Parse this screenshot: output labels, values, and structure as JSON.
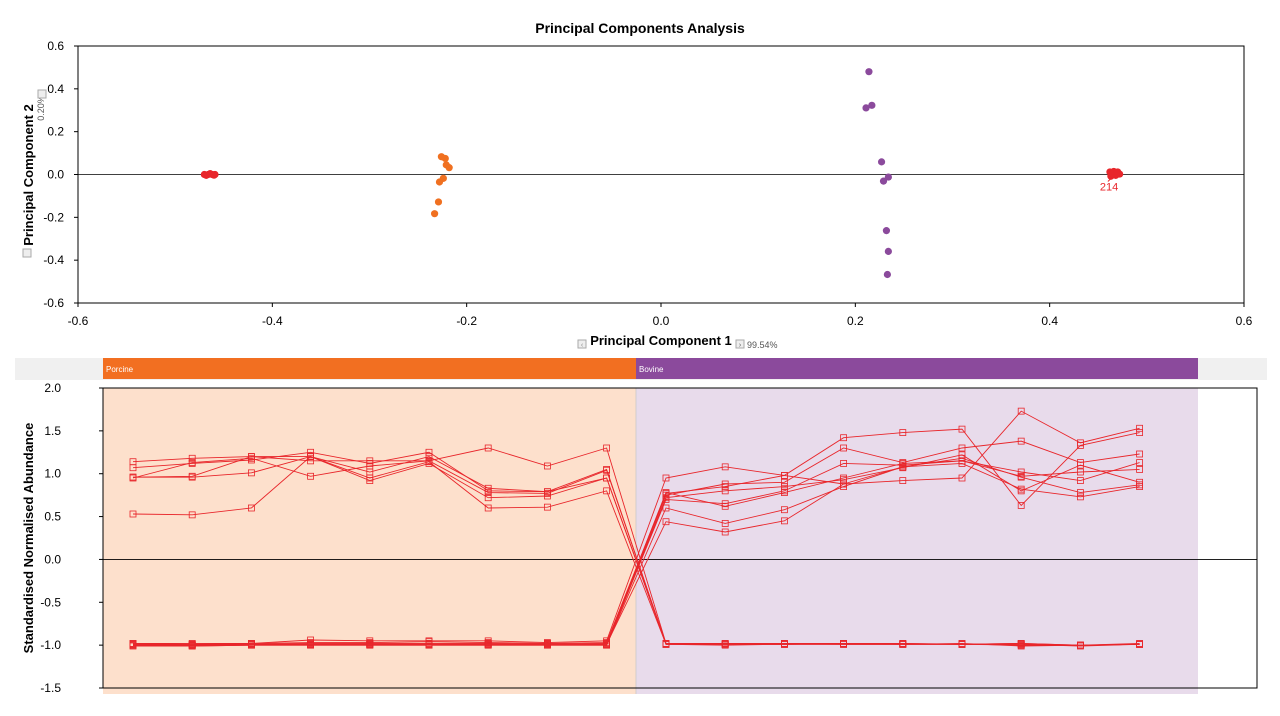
{
  "chart_data": [
    {
      "type": "scatter",
      "title": "Principal Components Analysis",
      "xlabel": "Principal Component 1",
      "ylabel": "Principal Component 2",
      "x_variance": "99.54%",
      "y_variance": "0.20%",
      "xlim": [
        -0.6,
        0.6
      ],
      "ylim": [
        -0.6,
        0.6
      ],
      "xticks": [
        "-0.6",
        "-0.4",
        "-0.2",
        "0.0",
        "0.2",
        "0.4",
        "0.6"
      ],
      "yticks": [
        "0.6",
        "0.4",
        "0.2",
        "0.0",
        "-0.2",
        "-0.4",
        "-0.6"
      ],
      "point_annotation": "214",
      "series": [
        {
          "color": "#e8262b",
          "points": [
            [
              -0.47,
              0.0
            ],
            [
              -0.466,
              0.0
            ],
            [
              -0.462,
              0.0
            ],
            [
              -0.459,
              0.0
            ],
            [
              -0.468,
              -0.004
            ],
            [
              -0.464,
              0.004
            ],
            [
              -0.46,
              -0.003
            ]
          ]
        },
        {
          "color": "#f07020",
          "points": [
            [
              -0.226,
              0.083
            ],
            [
              -0.222,
              0.075
            ],
            [
              -0.221,
              0.045
            ],
            [
              -0.218,
              0.032
            ],
            [
              -0.224,
              -0.018
            ],
            [
              -0.228,
              -0.035
            ],
            [
              -0.229,
              -0.128
            ],
            [
              -0.233,
              -0.183
            ]
          ]
        },
        {
          "color": "#8b4a9c",
          "points": [
            [
              0.214,
              0.48
            ],
            [
              0.211,
              0.311
            ],
            [
              0.217,
              0.323
            ],
            [
              0.227,
              0.059
            ],
            [
              0.234,
              -0.012
            ],
            [
              0.229,
              -0.031
            ],
            [
              0.232,
              -0.262
            ],
            [
              0.234,
              -0.359
            ],
            [
              0.233,
              -0.467
            ]
          ]
        },
        {
          "color": "#e8262b",
          "points": [
            [
              0.462,
              0.012
            ],
            [
              0.466,
              0.014
            ],
            [
              0.47,
              0.012
            ],
            [
              0.464,
              0.0
            ],
            [
              0.468,
              -0.004
            ],
            [
              0.472,
              0.002
            ],
            [
              0.463,
              -0.008
            ],
            [
              0.469,
              0.006
            ]
          ]
        }
      ]
    },
    {
      "type": "line",
      "ylabel": "Standardised Normalised Abundance",
      "ylim": [
        -1.5,
        2.0
      ],
      "yticks": [
        "2.0",
        "1.5",
        "1.0",
        "0.5",
        "0.0",
        "-0.5",
        "-1.0",
        "-1.5"
      ],
      "groups": [
        {
          "name": "Porcine",
          "color": "#f26f21",
          "fill": "#fde0cc",
          "samples": 9
        },
        {
          "name": "Bovine",
          "color": "#8b4a9c",
          "fill": "#e8dbeb",
          "samples": 9
        }
      ],
      "line_color": "#e8262b",
      "series": [
        {
          "values": [
            1.14,
            1.18,
            1.2,
            1.15,
            1.15,
            1.15,
            1.3,
            1.09,
            1.3,
            -0.98,
            -0.99,
            -0.98,
            -0.99,
            -0.99,
            -0.99,
            -0.98,
            -1.0,
            -0.99
          ]
        },
        {
          "values": [
            1.07,
            1.12,
            1.16,
            1.25,
            1.12,
            1.25,
            0.8,
            0.79,
            1.05,
            -0.99,
            -1.0,
            -0.99,
            -0.99,
            -0.99,
            -0.98,
            -1.01,
            -1.0,
            -0.99
          ]
        },
        {
          "values": [
            0.96,
            0.97,
            1.2,
            1.2,
            0.92,
            1.12,
            0.72,
            0.74,
            0.95,
            -0.98,
            -0.98,
            -0.98,
            -0.98,
            -0.98,
            -0.99,
            -0.99,
            -1.0,
            -0.99
          ]
        },
        {
          "values": [
            0.95,
            1.13,
            1.18,
            0.97,
            1.09,
            1.15,
            0.78,
            0.77,
            1.04,
            -0.99,
            -0.99,
            -0.99,
            -0.99,
            -0.99,
            -0.99,
            -0.99,
            -1.01,
            -0.99
          ]
        },
        {
          "values": [
            0.53,
            0.52,
            0.6,
            1.2,
            0.95,
            1.14,
            0.6,
            0.61,
            0.8,
            -0.99,
            -0.98,
            -0.99,
            -0.98,
            -0.98,
            -0.99,
            -1.0,
            -1.0,
            -0.99
          ]
        },
        {
          "values": [
            0.96,
            0.96,
            1.01,
            1.2,
            1.02,
            1.2,
            0.83,
            0.79,
            0.95,
            -0.99,
            -0.99,
            -0.99,
            -0.98,
            -0.99,
            -0.99,
            -0.98,
            -1.0,
            -0.98
          ]
        },
        {
          "values": [
            -0.98,
            -0.98,
            -0.98,
            -0.94,
            -0.95,
            -0.95,
            -0.95,
            -0.97,
            -0.95,
            0.95,
            1.08,
            0.98,
            0.88,
            0.92,
            0.95,
            1.73,
            1.36,
            1.53
          ]
        },
        {
          "values": [
            -0.99,
            -1.0,
            -0.98,
            -0.97,
            -0.97,
            -0.96,
            -0.97,
            -0.98,
            -0.97,
            0.77,
            0.85,
            0.98,
            1.42,
            1.48,
            1.52,
            0.63,
            1.33,
            1.48
          ]
        },
        {
          "values": [
            -1.0,
            -1.0,
            -0.99,
            -0.99,
            -0.99,
            -0.99,
            -0.99,
            -0.99,
            -0.99,
            0.75,
            0.88,
            0.9,
            1.3,
            1.13,
            1.3,
            1.38,
            1.13,
            1.23
          ]
        },
        {
          "values": [
            -1.01,
            -1.01,
            -1.0,
            -1.0,
            -1.0,
            -1.0,
            -1.0,
            -1.0,
            -1.0,
            0.7,
            0.65,
            0.8,
            1.12,
            1.1,
            1.15,
            1.02,
            0.92,
            1.13
          ]
        },
        {
          "values": [
            -1.0,
            -1.01,
            -1.0,
            -1.0,
            -1.0,
            -1.0,
            -1.0,
            -1.0,
            -1.0,
            0.6,
            0.42,
            0.58,
            0.85,
            1.08,
            1.18,
            0.96,
            0.78,
            0.87
          ]
        },
        {
          "values": [
            -0.99,
            -0.99,
            -0.99,
            -0.99,
            -0.99,
            -0.99,
            -0.99,
            -0.99,
            -0.99,
            0.44,
            0.32,
            0.45,
            0.88,
            1.08,
            1.12,
            0.82,
            0.73,
            0.85
          ]
        },
        {
          "values": [
            -1.0,
            -1.0,
            -1.0,
            -0.99,
            -0.99,
            -0.99,
            -0.99,
            -0.99,
            -0.99,
            0.72,
            0.8,
            0.85,
            0.93,
            1.07,
            1.22,
            0.8,
            1.1,
            0.9
          ]
        },
        {
          "values": [
            -0.98,
            -0.99,
            -0.98,
            -0.98,
            -0.98,
            -0.98,
            -0.98,
            -0.98,
            -0.98,
            0.78,
            0.62,
            0.78,
            0.95,
            1.12,
            1.15,
            0.97,
            1.02,
            1.05
          ]
        }
      ]
    }
  ]
}
